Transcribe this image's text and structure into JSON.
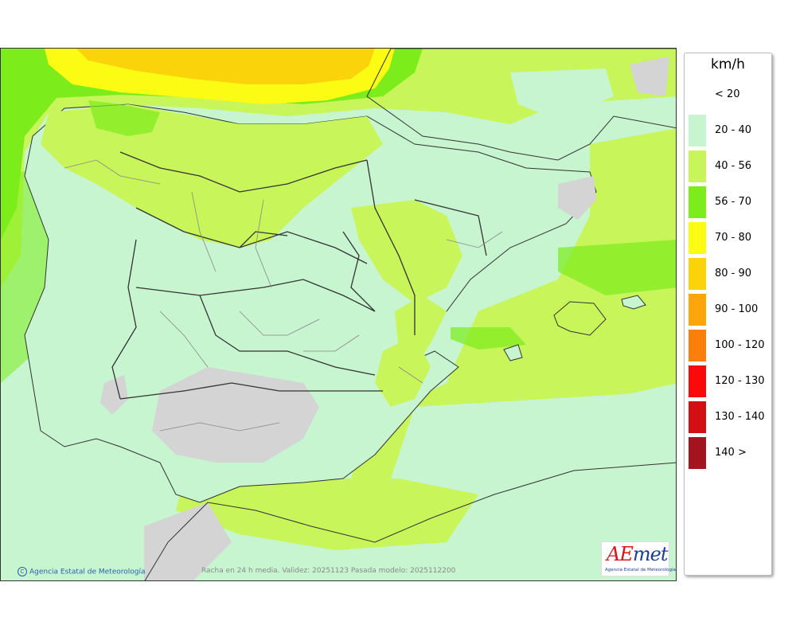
{
  "map": {
    "caption": "Racha en 24 h media. Validez: 20251123 Pasada modelo: 2025112200",
    "copyright": "Agencia Estatal de Meteorología",
    "copyright_symbol": "C",
    "logo_text_ae": "AE",
    "logo_text_met": "met",
    "logo_subtext": "Agencia Estatal de Meteorología"
  },
  "legend": {
    "unit": "km/h",
    "items": [
      {
        "label": "< 20",
        "color": null
      },
      {
        "label": "20 - 40",
        "color": "#c6f5cf"
      },
      {
        "label": "40 - 56",
        "color": "#c8f55a"
      },
      {
        "label": "56 - 70",
        "color": "#7ced1b"
      },
      {
        "label": "70 - 80",
        "color": "#fbfb14"
      },
      {
        "label": "80 - 90",
        "color": "#fbd30a"
      },
      {
        "label": "90 - 100",
        "color": "#fba709"
      },
      {
        "label": "100 - 120",
        "color": "#fb7f0a"
      },
      {
        "label": "120 - 130",
        "color": "#fb0a0a"
      },
      {
        "label": "130 - 140",
        "color": "#d40f14"
      },
      {
        "label": "140 >",
        "color": "#a4141e"
      }
    ]
  },
  "colors": {
    "sea_low": "#c6f5cf",
    "band_40_56": "#c8f55a",
    "band_56_70": "#7ced1b",
    "band_70_80": "#fbfb14",
    "band_80_90": "#fbd30a",
    "land_relief": "#d4d4d4",
    "border": "#333333",
    "region_border": "#888888"
  }
}
